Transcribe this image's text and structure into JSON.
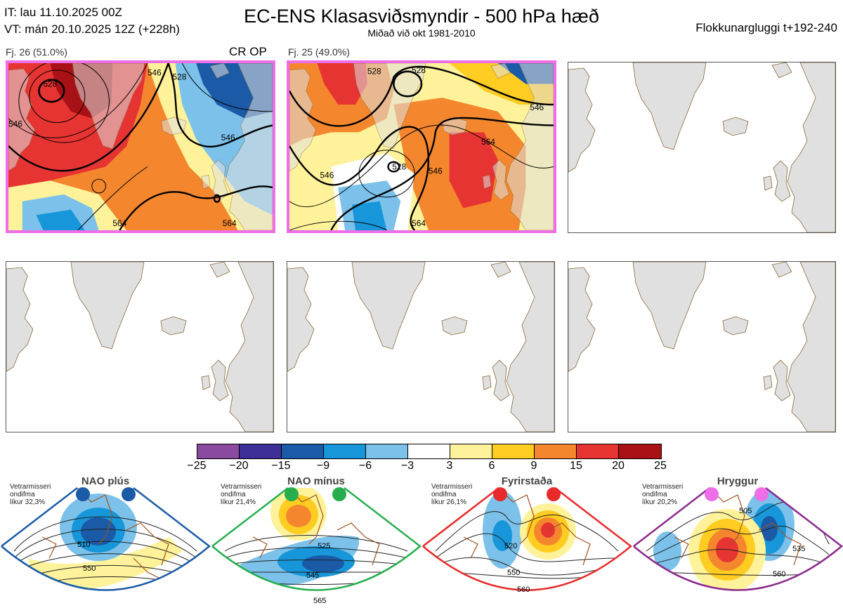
{
  "header": {
    "init_time": "IT: lau 11.10.2025 00Z",
    "valid_time": "VT: mán 20.10.2025 12Z  (+228h)",
    "title": "EC-ENS Klasasviðsmyndir - 500 hPa hæð",
    "subtitle": "Miðað við okt 1981-2010",
    "cluster_window": "Flokkunargluggi t+192-240"
  },
  "panels": [
    {
      "label": "Fj. 26 (51.0%)",
      "tag": "CR OP",
      "highlighted": true,
      "contour_labels": [
        "528",
        "546",
        "528",
        "546",
        "546",
        "564",
        "564"
      ]
    },
    {
      "label": "Fj. 25 (49.0%)",
      "tag": "",
      "highlighted": true,
      "contour_labels": [
        "528",
        "528",
        "546",
        "564",
        "546",
        "528",
        "546",
        "564"
      ]
    }
  ],
  "colorbar": {
    "colors": [
      "#8a4aa0",
      "#3d2f97",
      "#1a5aa6",
      "#1796d9",
      "#7cc1ea",
      "#ffffff",
      "#fff29a",
      "#ffcc22",
      "#f4872e",
      "#e63432",
      "#a81115"
    ],
    "ticks": [
      "−25",
      "−20",
      "−15",
      "−9",
      "−6",
      "−3",
      "3",
      "6",
      "9",
      "15",
      "20",
      "25"
    ]
  },
  "regimes": [
    {
      "name": "NAO plús",
      "info": [
        "Vetrarmisseri",
        "ondifma",
        "líkur 32,3%"
      ],
      "dot_color": "#1a5aa6",
      "border_color": "#1a5aa6",
      "contour_labels": [
        "510",
        "550"
      ]
    },
    {
      "name": "NAO mínus",
      "info": [
        "Vetrarmisseri",
        "ondifma",
        "líkur 21,4%"
      ],
      "dot_color": "#27ad4e",
      "border_color": "#27ad4e",
      "contour_labels": [
        "525",
        "545",
        "565"
      ]
    },
    {
      "name": "Fyrirstaða",
      "info": [
        "Vetrarmisseri",
        "ondifma",
        "líkur 26,1%"
      ],
      "dot_color": "#e82a2a",
      "border_color": "#e82a2a",
      "contour_labels": [
        "520",
        "550",
        "560"
      ]
    },
    {
      "name": "Hryggur",
      "info": [
        "Vetrarmisseri",
        "ondifma",
        "líkur 20,2%"
      ],
      "dot_color": "#ee6ee8",
      "border_color": "#8b2a8b",
      "contour_labels": [
        "505",
        "535",
        "560"
      ]
    }
  ]
}
